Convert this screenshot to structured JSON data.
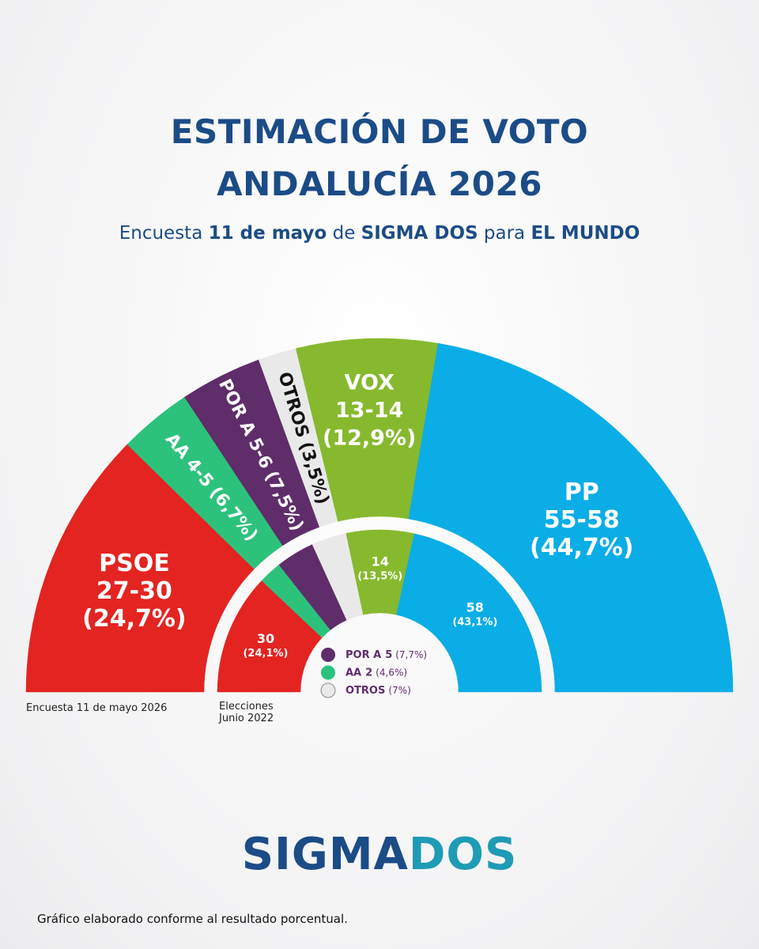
{
  "chart_data": {
    "type": "semicircle",
    "title": [
      "ESTIMACIÓN DE VOTO",
      "ANDALUCÍA 2026"
    ],
    "subtitle": [
      "Encuesta",
      "11 de mayo",
      "de",
      "SIGMA DOS",
      "para",
      "EL MUNDO"
    ],
    "categories": [
      "PSOE",
      "AA",
      "POR A",
      "OTROS",
      "VOX",
      "PP"
    ],
    "colors": [
      "#e32421",
      "#2cc27c",
      "#5f2d6a",
      "#e9e9e9",
      "#86b92e",
      "#0aade6"
    ],
    "series": [
      {
        "name": "Encuesta 11 de mayo 2026",
        "values": [
          24.7,
          6.7,
          7.5,
          3.5,
          12.9,
          44.7
        ],
        "value_labels": [
          "(24,7%)",
          "(6,7%)",
          "(7,5%)",
          "(3,5%)",
          "(12,9%)",
          "(44,7%)"
        ],
        "seats": [
          "27-30",
          "4-5",
          "5-6",
          null,
          "13-14",
          "55-58"
        ]
      },
      {
        "name": "Elecciones Junio 2022",
        "values": [
          24.1,
          4.6,
          7.7,
          7,
          13.5,
          43.1
        ],
        "value_labels": [
          "(24,1%)",
          "(4,6%)",
          "(7,7%)",
          "(7%)",
          "(13,5%)",
          "(43,1%)"
        ],
        "seats": [
          30,
          2,
          5,
          null,
          14,
          58
        ]
      }
    ],
    "logo": [
      "SIGMA",
      "DOS"
    ],
    "note": "Gráfico elaborado conforme al resultado porcentual."
  }
}
